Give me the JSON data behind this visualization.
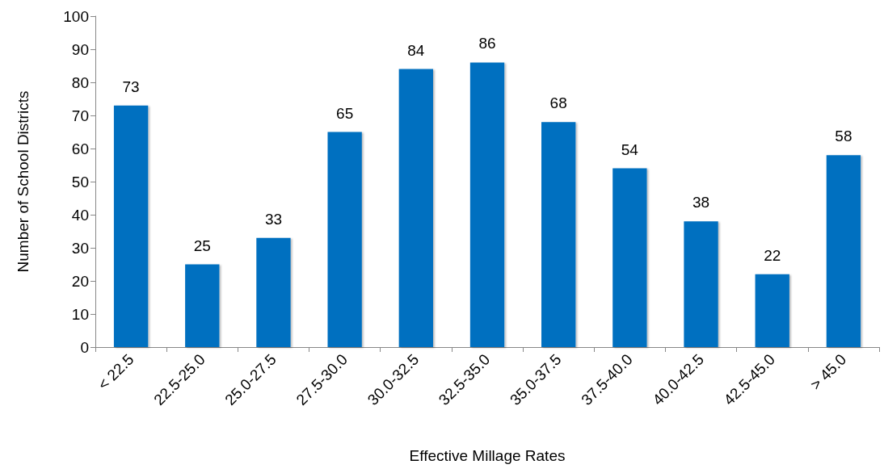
{
  "chart_data": {
    "type": "bar",
    "xlabel": "Effective Millage Rates",
    "ylabel": "Number of School Districts",
    "categories": [
      "< 22.5",
      "22.5-25.0",
      "25.0-27.5",
      "27.5-30.0",
      "30.0-32.5",
      "32.5-35.0",
      "35.0-37.5",
      "37.5-40.0",
      "40.0-42.5",
      "42.5-45.0",
      "> 45.0"
    ],
    "values": [
      73,
      25,
      33,
      65,
      84,
      86,
      68,
      54,
      38,
      22,
      58
    ],
    "color": "#0070c0",
    "ylim": [
      0,
      100
    ],
    "yticks": [
      0,
      10,
      20,
      30,
      40,
      50,
      60,
      70,
      80,
      90,
      100
    ],
    "grid": false,
    "data_labels": true
  }
}
